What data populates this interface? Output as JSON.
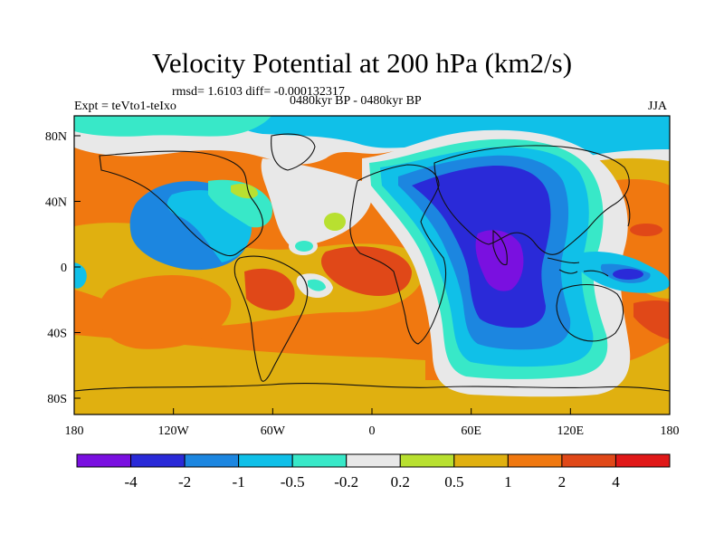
{
  "figure": {
    "title": "Velocity Potential at 200 hPa (km2/s)",
    "stats": "rmsd= 1.6103 diff= -0.000132317",
    "experiment": "Expt = teVto1-teIxo",
    "period": "0480kyr BP - 0480kyr BP",
    "season": "JJA"
  },
  "axes": {
    "x_ticks": [
      "180",
      "120W",
      "60W",
      "0",
      "60E",
      "120E",
      "180"
    ],
    "y_ticks": [
      "80N",
      "40N",
      "0",
      "40S",
      "80S"
    ]
  },
  "colorbar": {
    "colors": [
      "#7a10e0",
      "#2a2ad8",
      "#1c86e0",
      "#10c0e8",
      "#38e8c8",
      "#e8e8e8",
      "#b8e030",
      "#e0b010",
      "#f07810",
      "#e04818",
      "#e01818"
    ],
    "labels": [
      "-4",
      "-2",
      "-1",
      "-0.5",
      "-0.2",
      "0.2",
      "0.5",
      "1",
      "2",
      "4"
    ]
  }
}
